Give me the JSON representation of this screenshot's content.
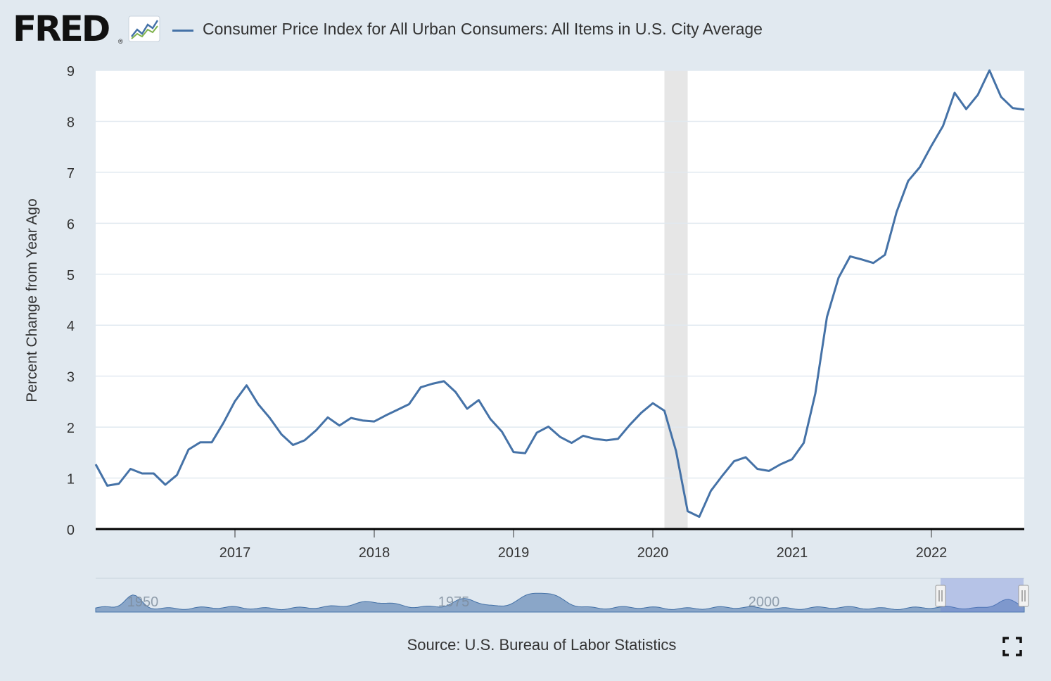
{
  "header": {
    "logo": "FRED",
    "logo_mark": "®",
    "series_title": "Consumer Price Index for All Urban Consumers: All Items in U.S. City Average"
  },
  "footer": {
    "source": "Source: U.S. Bureau of Labor Statistics"
  },
  "colors": {
    "series": "#4572a7",
    "navigator_fill": "#8aa6c8",
    "recession": "#e6e6e6",
    "gridline": "#e1e9f0",
    "background": "#e1e9f0"
  },
  "icons": {
    "logo_icon": "trend-chart-icon",
    "fullscreen": "fullscreen-icon"
  },
  "chart_data": {
    "type": "line",
    "title": "",
    "ylabel": "Percent Change from Year Ago",
    "xlabel": "",
    "x_ticks": [
      "2017",
      "2018",
      "2019",
      "2020",
      "2021",
      "2022"
    ],
    "y_ticks": [
      "0",
      "1",
      "2",
      "3",
      "4",
      "5",
      "6",
      "7",
      "8",
      "9"
    ],
    "xlim": [
      "2016-01",
      "2022-09"
    ],
    "ylim": [
      0,
      9
    ],
    "grid": "horizontal",
    "recession_shading": [
      {
        "start": "2020-02",
        "end": "2020-04"
      }
    ],
    "navigator_labels": [
      "1950",
      "1975",
      "2000"
    ],
    "series": [
      {
        "name": "Consumer Price Index for All Urban Consumers: All Items in U.S. City Average",
        "x": [
          "2016-01",
          "2016-02",
          "2016-03",
          "2016-04",
          "2016-05",
          "2016-06",
          "2016-07",
          "2016-08",
          "2016-09",
          "2016-10",
          "2016-11",
          "2016-12",
          "2017-01",
          "2017-02",
          "2017-03",
          "2017-04",
          "2017-05",
          "2017-06",
          "2017-07",
          "2017-08",
          "2017-09",
          "2017-10",
          "2017-11",
          "2017-12",
          "2018-01",
          "2018-02",
          "2018-03",
          "2018-04",
          "2018-05",
          "2018-06",
          "2018-07",
          "2018-08",
          "2018-09",
          "2018-10",
          "2018-11",
          "2018-12",
          "2019-01",
          "2019-02",
          "2019-03",
          "2019-04",
          "2019-05",
          "2019-06",
          "2019-07",
          "2019-08",
          "2019-09",
          "2019-10",
          "2019-11",
          "2019-12",
          "2020-01",
          "2020-02",
          "2020-03",
          "2020-04",
          "2020-05",
          "2020-06",
          "2020-07",
          "2020-08",
          "2020-09",
          "2020-10",
          "2020-11",
          "2020-12",
          "2021-01",
          "2021-02",
          "2021-03",
          "2021-04",
          "2021-05",
          "2021-06",
          "2021-07",
          "2021-08",
          "2021-09",
          "2021-10",
          "2021-11",
          "2021-12",
          "2022-01",
          "2022-02",
          "2022-03",
          "2022-04",
          "2022-05",
          "2022-06",
          "2022-07",
          "2022-08",
          "2022-09"
        ],
        "values": [
          1.27,
          0.85,
          0.89,
          1.18,
          1.09,
          1.09,
          0.87,
          1.06,
          1.56,
          1.7,
          1.7,
          2.08,
          2.51,
          2.82,
          2.45,
          2.18,
          1.86,
          1.65,
          1.74,
          1.94,
          2.19,
          2.03,
          2.18,
          2.13,
          2.11,
          2.23,
          2.34,
          2.45,
          2.78,
          2.85,
          2.9,
          2.69,
          2.36,
          2.53,
          2.16,
          1.91,
          1.51,
          1.49,
          1.89,
          2.01,
          1.81,
          1.69,
          1.83,
          1.77,
          1.74,
          1.77,
          2.04,
          2.28,
          2.47,
          2.32,
          1.53,
          0.35,
          0.24,
          0.75,
          1.05,
          1.33,
          1.41,
          1.18,
          1.14,
          1.27,
          1.37,
          1.69,
          2.66,
          4.16,
          4.93,
          5.35,
          5.29,
          5.22,
          5.38,
          6.22,
          6.83,
          7.1,
          7.52,
          7.91,
          8.56,
          8.24,
          8.52,
          9.0,
          8.48,
          8.26,
          8.23
        ]
      }
    ]
  }
}
